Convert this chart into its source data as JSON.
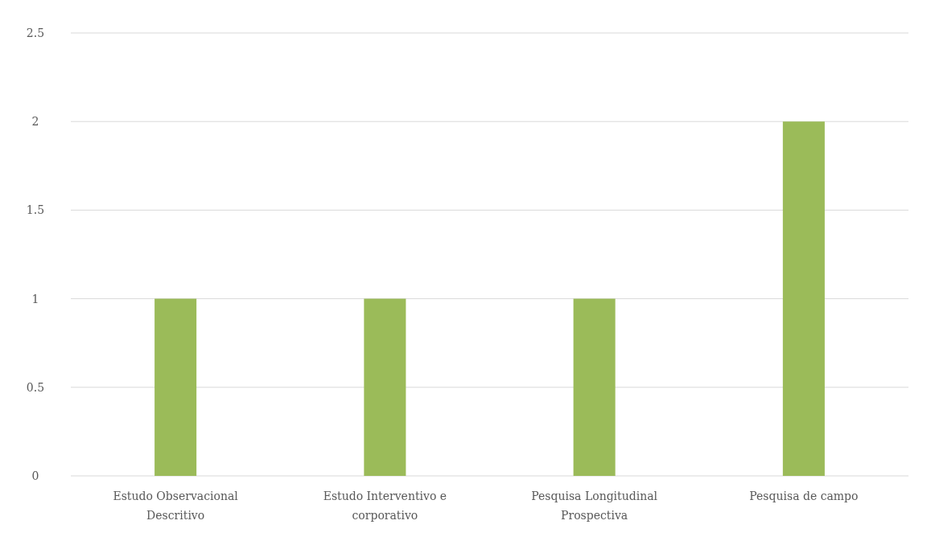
{
  "chart_data": {
    "type": "bar",
    "categories": [
      "Estudo Observacional Descritivo",
      "Estudo Interventivo e corporativo",
      "Pesquisa Longitudinal Prospectiva",
      "Pesquisa de campo"
    ],
    "values": [
      1,
      1,
      1,
      2
    ],
    "color": "#9bbb59",
    "ylim": [
      0,
      2.5
    ],
    "yticks": [
      0,
      0.5,
      1,
      1.5,
      2,
      2.5
    ],
    "grid": "y"
  }
}
